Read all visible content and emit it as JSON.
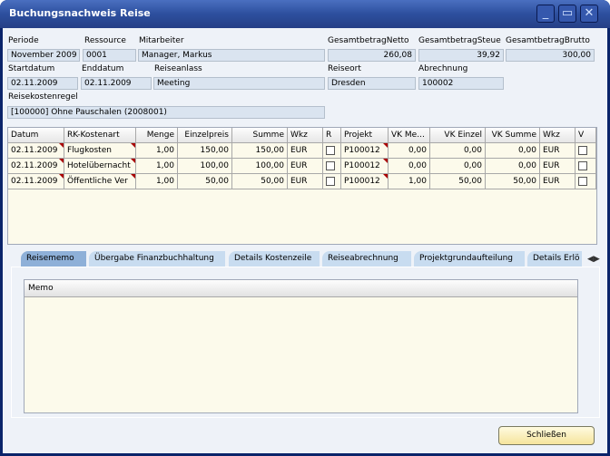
{
  "window": {
    "title": "Buchungsnachweis Reise",
    "minimize_icon": "minimize-icon",
    "maximize_icon": "maximize-icon",
    "close_icon": "close-icon"
  },
  "header": {
    "labels": {
      "periode": "Periode",
      "ressource": "Ressource",
      "mitarbeiter": "Mitarbeiter",
      "netto": "GesamtbetragNetto",
      "steuer": "GesamtbetragSteue",
      "brutto": "GesamtbetragBrutto",
      "startdatum": "Startdatum",
      "enddatum": "Enddatum",
      "reiseanlass": "Reiseanlass",
      "reiseort": "Reiseort",
      "abrechnung": "Abrechnung",
      "regel": "Reisekostenregel"
    },
    "values": {
      "periode": "November 2009",
      "ressource": "0001",
      "mitarbeiter": "Manager, Markus",
      "netto": "260,08",
      "steuer": "39,92",
      "brutto": "300,00",
      "startdatum": "02.11.2009",
      "enddatum": "02.11.2009",
      "reiseanlass": "Meeting",
      "reiseort": "Dresden",
      "abrechnung": "100002",
      "regel": "[100000]  Ohne Pauschalen (2008001)"
    }
  },
  "grid": {
    "columns": [
      "Datum",
      "RK-Kostenart",
      "Menge",
      "Einzelpreis",
      "Summe",
      "Wkz",
      "R",
      "Projekt",
      "VK Me...",
      "VK Einzel",
      "VK Summe",
      "Wkz",
      "V"
    ],
    "rows": [
      [
        "02.11.2009",
        "Flugkosten",
        "1,00",
        "150,00",
        "150,00",
        "EUR",
        "",
        "P100012",
        "0,00",
        "0,00",
        "0,00",
        "EUR",
        ""
      ],
      [
        "02.11.2009",
        "Hotelübernacht",
        "1,00",
        "100,00",
        "100,00",
        "EUR",
        "",
        "P100012",
        "0,00",
        "0,00",
        "0,00",
        "EUR",
        ""
      ],
      [
        "02.11.2009",
        "Öffentliche Ver",
        "1,00",
        "50,00",
        "50,00",
        "EUR",
        "",
        "P100012",
        "1,00",
        "50,00",
        "50,00",
        "EUR",
        ""
      ]
    ]
  },
  "tabs": [
    {
      "label": "Reisememo",
      "active": true
    },
    {
      "label": "Übergabe Finanzbuchhaltung"
    },
    {
      "label": "Details Kostenzeile"
    },
    {
      "label": "Reiseabrechnung"
    },
    {
      "label": "Projektgrundaufteilung"
    },
    {
      "label": "Details Erlö"
    }
  ],
  "memo": {
    "header": "Memo",
    "value": ""
  },
  "footer": {
    "close_label": "Schließen"
  }
}
